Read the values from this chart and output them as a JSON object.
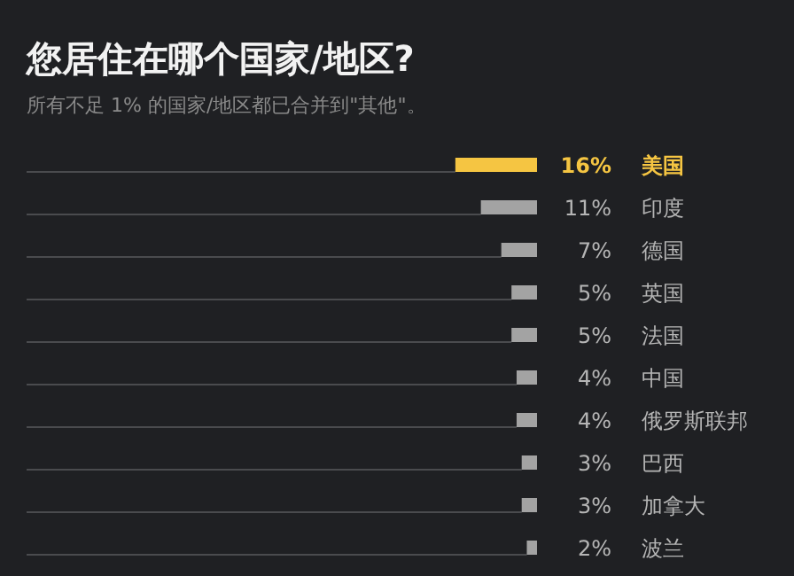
{
  "chart_data": {
    "type": "bar",
    "orientation": "horizontal",
    "title": "您居住在哪个国家/地区?",
    "subtitle": "所有不足 1% 的国家/地区都已合并到\"其他\"。",
    "categories": [
      "美国",
      "印度",
      "德国",
      "英国",
      "法国",
      "中国",
      "俄罗斯联邦",
      "巴西",
      "加拿大",
      "波兰"
    ],
    "values": [
      16,
      11,
      7,
      5,
      5,
      4,
      4,
      3,
      3,
      2
    ],
    "value_labels": [
      "16%",
      "11%",
      "7%",
      "5%",
      "5%",
      "4%",
      "4%",
      "3%",
      "3%",
      "2%"
    ],
    "colors": [
      "#f5c542",
      "#a3a3a3",
      "#a3a3a3",
      "#a3a3a3",
      "#a3a3a3",
      "#a3a3a3",
      "#a3a3a3",
      "#a3a3a3",
      "#a3a3a3",
      "#a3a3a3"
    ],
    "xlim": [
      100,
      0
    ]
  }
}
